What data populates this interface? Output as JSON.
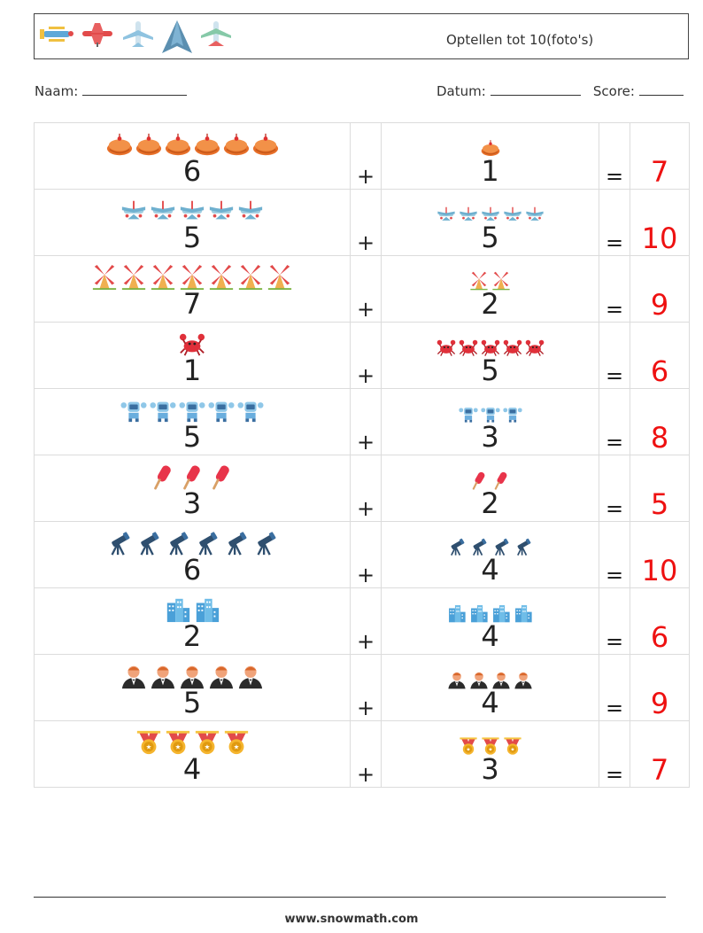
{
  "header": {
    "title": "Optellen tot 10(foto's)",
    "decorations": [
      "biplane-icon",
      "red-plane-icon",
      "jet-plane-icon",
      "stealth-plane-icon",
      "fighter-jet-icon"
    ]
  },
  "info": {
    "name_label": "Naam:",
    "date_label": "Datum:",
    "score_label": "Score:"
  },
  "operators": {
    "plus": "+",
    "equals": "="
  },
  "rows": [
    {
      "icon": "cake",
      "a": "6",
      "b": "1",
      "answer": "7"
    },
    {
      "icon": "airplane",
      "a": "5",
      "b": "5",
      "answer": "10"
    },
    {
      "icon": "windmill",
      "a": "7",
      "b": "2",
      "answer": "9"
    },
    {
      "icon": "crab",
      "a": "1",
      "b": "5",
      "answer": "6"
    },
    {
      "icon": "robot",
      "a": "5",
      "b": "3",
      "answer": "8"
    },
    {
      "icon": "popsicle",
      "a": "3",
      "b": "2",
      "answer": "5"
    },
    {
      "icon": "telescope",
      "a": "6",
      "b": "4",
      "answer": "10"
    },
    {
      "icon": "buildings",
      "a": "2",
      "b": "4",
      "answer": "6"
    },
    {
      "icon": "waiter",
      "a": "5",
      "b": "4",
      "answer": "9"
    },
    {
      "icon": "medal",
      "a": "4",
      "b": "3",
      "answer": "7"
    }
  ],
  "colors": {
    "answer": "#ee1111",
    "border": "#dcdcdc"
  },
  "footer": {
    "url": "www.snowmath.com"
  }
}
